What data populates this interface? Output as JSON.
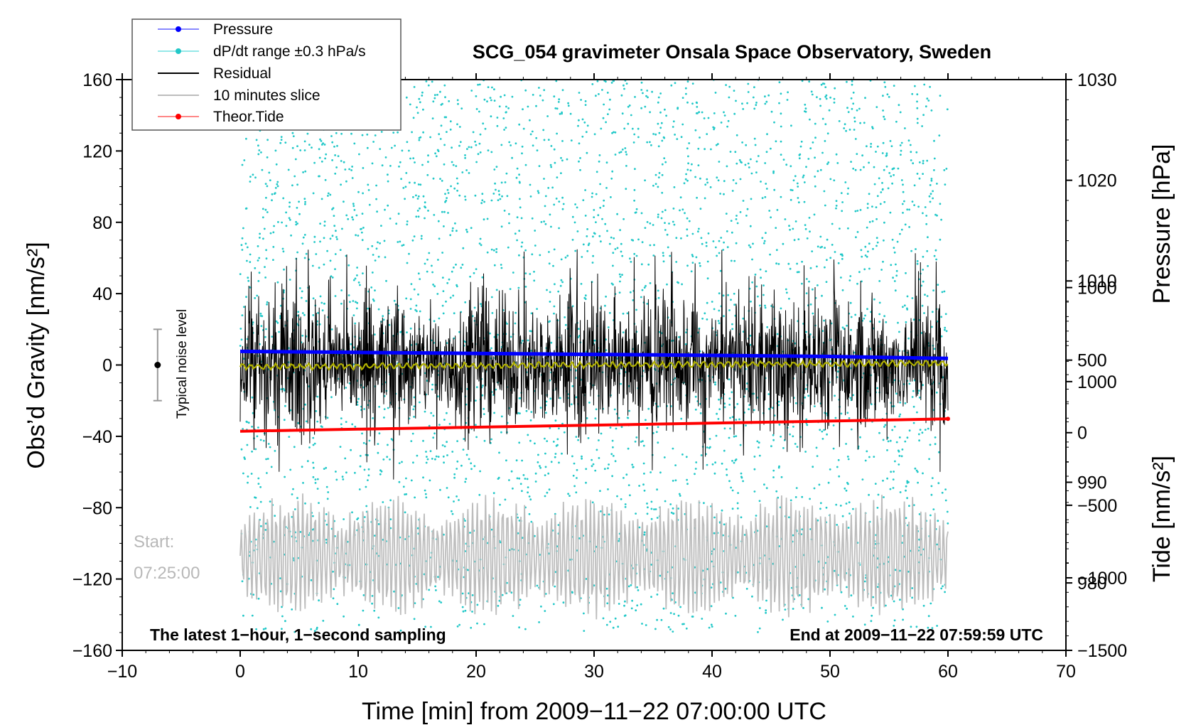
{
  "chart_data": {
    "type": "line",
    "title": "SCG_054 gravimeter Onsala Space Observatory, Sweden",
    "xlabel": "Time [min] from 2009−11−22 07:00:00 UTC",
    "ylabel_left": "Obs’d Gravity [nm/s²]",
    "ylabel_right_pressure": "Pressure [hPa]",
    "ylabel_right_tide": "Tide [nm/s²]",
    "xlim": [
      -10,
      70
    ],
    "ylim": [
      -160,
      160
    ],
    "pressure_axis_range": [
      1030,
      973.3
    ],
    "tide_axis_range": [
      -1500,
      2433
    ],
    "x_ticks": [
      "−10",
      "0",
      "10",
      "20",
      "30",
      "40",
      "50",
      "60",
      "70"
    ],
    "y_ticks_left": [
      "160",
      "120",
      "80",
      "40",
      "0",
      "−40",
      "−80",
      "−120",
      "−160"
    ],
    "pressure_ticks": [
      "1030",
      "1020",
      "1010",
      "1000",
      "990",
      "980"
    ],
    "tide_ticks": [
      "1000",
      "500",
      "0",
      "−500",
      "−1000",
      "−1500"
    ],
    "legend": {
      "position": "top-left",
      "entries": [
        "Pressure",
        "dP/dt range ±0.3 hPa/s",
        "Residual",
        "10 minutes slice",
        "Theor.Tide"
      ]
    },
    "series": [
      {
        "name": "Pressure",
        "unit": "hPa",
        "color": "#0000ff",
        "x": [
          0,
          10,
          20,
          30,
          40,
          50,
          60
        ],
        "values": [
          1003.0,
          1002.9,
          1002.8,
          1002.7,
          1002.6,
          1002.5,
          1002.3
        ]
      },
      {
        "name": "dP/dt range ±0.3 hPa/s",
        "unit": "hPa",
        "color": "#22c8c8",
        "x_range": [
          0,
          60
        ],
        "y_range": [
          975.0,
          1030.0
        ]
      },
      {
        "name": "Residual",
        "unit": "nm/s²",
        "color": "#000000",
        "x_range": [
          0,
          60
        ],
        "typical_amplitude": 15,
        "peak_range": [
          -65,
          65
        ]
      },
      {
        "name": "Residual smoothed",
        "unit": "nm/s²",
        "color": "#b0b000",
        "x": [
          0,
          30,
          60
        ],
        "values": [
          -1,
          0,
          1
        ]
      },
      {
        "name": "10 minutes slice",
        "unit": "nm/s²",
        "color": "#bdbdbd",
        "x_range": [
          0,
          60
        ],
        "y_range": [
          -145,
          -75
        ]
      },
      {
        "name": "Theor.Tide",
        "unit": "nm/s²",
        "color": "#ff0000",
        "x": [
          0,
          10,
          20,
          30,
          40,
          50,
          60
        ],
        "values": [
          10,
          24,
          38,
          52,
          66,
          80,
          95
        ]
      }
    ],
    "annotations": {
      "noise_label": "Typical noise level",
      "noise_bar": {
        "x": -7,
        "center": 0,
        "half_range": 20
      },
      "start_label_1": "Start:",
      "start_label_2": "07:25:00",
      "bottom_left": "The latest 1−hour, 1−second sampling",
      "bottom_right": "End at 2009−11−22 07:59:59 UTC"
    }
  }
}
